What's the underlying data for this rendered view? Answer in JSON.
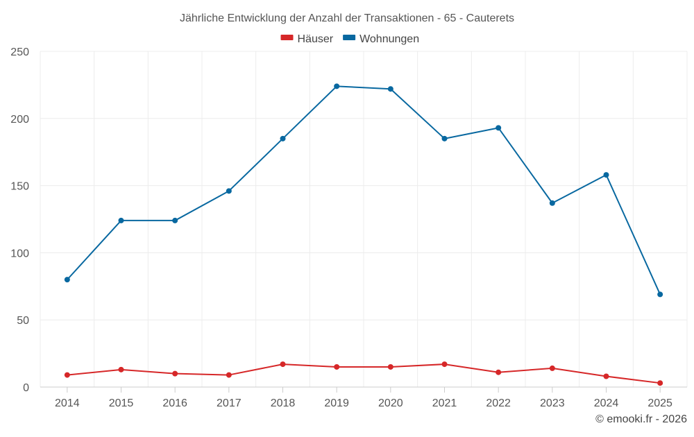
{
  "chart_data": {
    "type": "line",
    "title": "Jährliche Entwicklung der Anzahl der Transaktionen - 65 - Cauterets",
    "categories": [
      "2014",
      "2015",
      "2016",
      "2017",
      "2018",
      "2019",
      "2020",
      "2021",
      "2022",
      "2023",
      "2024",
      "2025"
    ],
    "series": [
      {
        "name": "Häuser",
        "color": "#d62728",
        "values": [
          9,
          13,
          10,
          9,
          17,
          15,
          15,
          17,
          11,
          14,
          8,
          3
        ]
      },
      {
        "name": "Wohnungen",
        "color": "#0868a0",
        "values": [
          80,
          124,
          124,
          146,
          185,
          224,
          222,
          185,
          193,
          137,
          158,
          69
        ]
      }
    ],
    "ylim": [
      0,
      250
    ],
    "yticks": [
      0,
      50,
      100,
      150,
      200,
      250
    ],
    "grid": true,
    "legend_position": "top-center",
    "xlabel": "",
    "ylabel": "",
    "credit": "© emooki.fr - 2026"
  }
}
